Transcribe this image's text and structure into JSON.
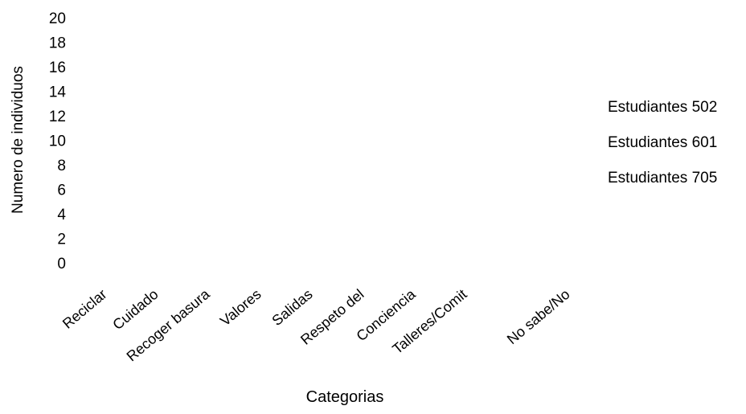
{
  "chart_data": {
    "type": "bar",
    "title": "",
    "xlabel": "Categorias",
    "ylabel": "Numero de individuos",
    "ylim": [
      0,
      20
    ],
    "yticks": [
      "0",
      "2",
      "4",
      "6",
      "8",
      "10",
      "12",
      "14",
      "16",
      "18",
      "20"
    ],
    "categories": [
      "Reciclar",
      "Cuidado",
      "Recoger basura",
      "Valores",
      "Salidas",
      "Respeto del",
      "Conciencia",
      "Talleres/Comit",
      "",
      "No sabe/No"
    ],
    "series": [
      {
        "name": "Estudiantes 502",
        "values": [
          0,
          0,
          0,
          0,
          0,
          0,
          0,
          0,
          0,
          0
        ]
      },
      {
        "name": "Estudiantes 601",
        "values": [
          0,
          0,
          0,
          0,
          0,
          0,
          0,
          0,
          0,
          0
        ]
      },
      {
        "name": "Estudiantes 705",
        "values": [
          0,
          0,
          0,
          0,
          0,
          0,
          0,
          0,
          0,
          0
        ]
      }
    ],
    "grid": false,
    "legend_position": "right"
  }
}
